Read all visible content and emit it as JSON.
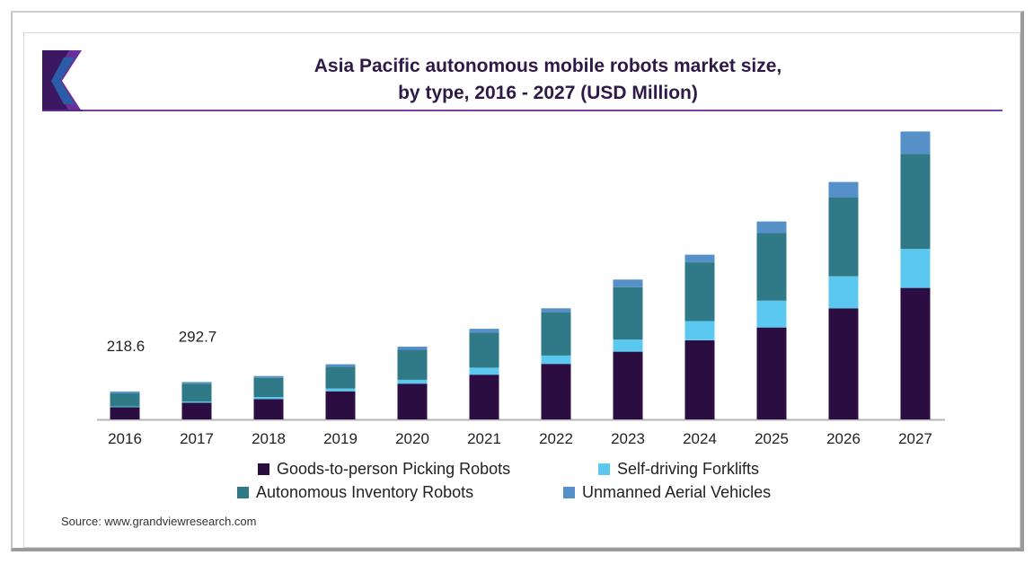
{
  "title_line1": "Asia Pacific autonomous mobile robots market size,",
  "title_line2": "by type, 2016 - 2027 (USD Million)",
  "source": "Source: www.grandviewresearch.com",
  "colors": {
    "goods": "#2b0d42",
    "forklifts": "#5bc8f0",
    "inventory": "#2f7a86",
    "uav": "#5590c8",
    "title": "#2e1a47",
    "rule": "#7b3fa6"
  },
  "chart_data": {
    "type": "bar",
    "stacked": true,
    "title": "Asia Pacific autonomous mobile robots market size, by type, 2016 - 2027 (USD Million)",
    "categories": [
      "2016",
      "2017",
      "2018",
      "2019",
      "2020",
      "2021",
      "2022",
      "2023",
      "2024",
      "2025",
      "2026",
      "2027"
    ],
    "series": [
      {
        "name": "Goods-to-person Picking Robots",
        "color": "#2b0d42",
        "values": [
          95,
          130,
          160,
          220,
          280,
          350,
          435,
          530,
          620,
          720,
          870,
          1030
        ]
      },
      {
        "name": "Self-driving Forklifts",
        "color": "#5bc8f0",
        "values": [
          6,
          10,
          16,
          22,
          30,
          55,
          65,
          95,
          150,
          210,
          250,
          305
        ]
      },
      {
        "name": "Autonomous Inventory Robots",
        "color": "#2f7a86",
        "values": [
          105,
          140,
          150,
          170,
          235,
          275,
          340,
          410,
          460,
          530,
          620,
          745
        ]
      },
      {
        "name": "Unmanned Aerial Vehicles",
        "color": "#5590c8",
        "values": [
          12.6,
          12.7,
          14,
          20,
          25,
          30,
          30,
          60,
          60,
          90,
          120,
          175
        ]
      }
    ],
    "data_labels": {
      "2016": "218.6",
      "2017": "292.7"
    },
    "ylim": [
      0,
      2300
    ],
    "xlabel": "",
    "ylabel": "",
    "grid": false,
    "legend_position": "bottom"
  }
}
